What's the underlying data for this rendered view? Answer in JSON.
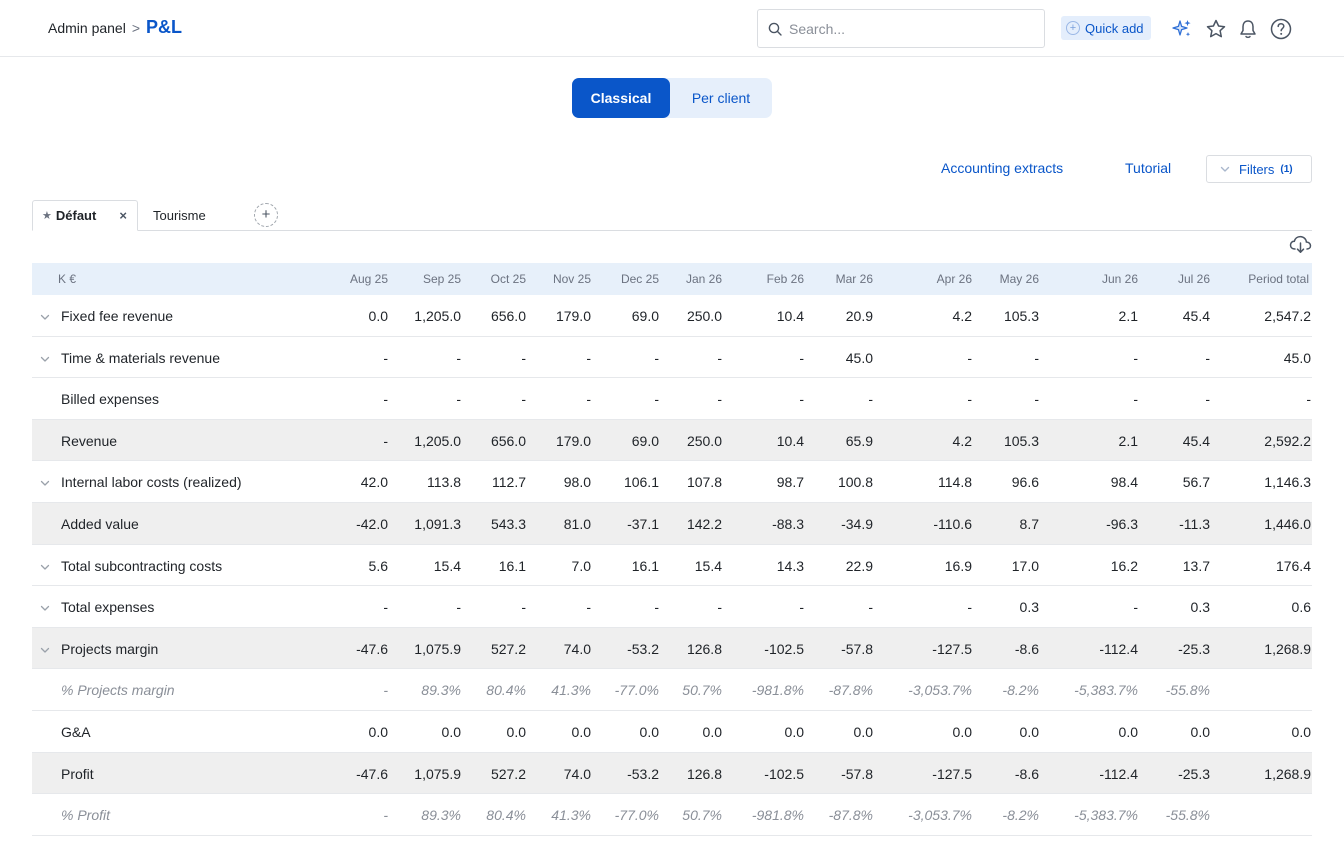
{
  "breadcrumb": {
    "parent": "Admin panel",
    "separator": ">",
    "current": "P&L"
  },
  "search": {
    "placeholder": "Search..."
  },
  "quick_add": {
    "label": "Quick add"
  },
  "header_icons": [
    "sparkle-icon",
    "star-icon",
    "bell-icon",
    "help-icon"
  ],
  "view_mode": {
    "classical": "Classical",
    "per_client": "Per client",
    "selected": "Classical"
  },
  "actions": {
    "accounting_extracts": "Accounting extracts",
    "tutorial": "Tutorial",
    "filters": "Filters",
    "filters_count": "(1)"
  },
  "views": {
    "default_label": "Défaut",
    "other_label": "Tourisme",
    "add": "+",
    "close": "×"
  },
  "colors": {
    "accent": "#0a56c9",
    "header_bg": "#e7f0fa",
    "shaded_row": "#efefef"
  },
  "table": {
    "unit_label": "K €",
    "columns": [
      "Aug 25",
      "Sep 25",
      "Oct 25",
      "Nov 25",
      "Dec 25",
      "Jan 26",
      "Feb 26",
      "Mar 26",
      "Apr 26",
      "May 26",
      "Jun 26",
      "Jul 26",
      "Period total"
    ],
    "rows": [
      {
        "label": "Fixed fee revenue",
        "values": [
          "0.0",
          "1,205.0",
          "656.0",
          "179.0",
          "69.0",
          "250.0",
          "10.4",
          "20.9",
          "4.2",
          "105.3",
          "2.1",
          "45.4",
          "2,547.2"
        ]
      },
      {
        "label": "Time & materials revenue",
        "values": [
          "-",
          "-",
          "-",
          "-",
          "-",
          "-",
          "-",
          "45.0",
          "-",
          "-",
          "-",
          "-",
          "45.0"
        ]
      },
      {
        "label": "Billed expenses",
        "values": [
          "-",
          "-",
          "-",
          "-",
          "-",
          "-",
          "-",
          "-",
          "-",
          "-",
          "-",
          "-",
          "-"
        ]
      },
      {
        "label": "Revenue",
        "values": [
          "-",
          "1,205.0",
          "656.0",
          "179.0",
          "69.0",
          "250.0",
          "10.4",
          "65.9",
          "4.2",
          "105.3",
          "2.1",
          "45.4",
          "2,592.2"
        ]
      },
      {
        "label": "Internal labor costs (realized)",
        "values": [
          "42.0",
          "113.8",
          "112.7",
          "98.0",
          "106.1",
          "107.8",
          "98.7",
          "100.8",
          "114.8",
          "96.6",
          "98.4",
          "56.7",
          "1,146.3"
        ]
      },
      {
        "label": "Added value",
        "values": [
          "-42.0",
          "1,091.3",
          "543.3",
          "81.0",
          "-37.1",
          "142.2",
          "-88.3",
          "-34.9",
          "-110.6",
          "8.7",
          "-96.3",
          "-11.3",
          "1,446.0"
        ]
      },
      {
        "label": "Total subcontracting costs",
        "values": [
          "5.6",
          "15.4",
          "16.1",
          "7.0",
          "16.1",
          "15.4",
          "14.3",
          "22.9",
          "16.9",
          "17.0",
          "16.2",
          "13.7",
          "176.4"
        ]
      },
      {
        "label": "Total expenses",
        "values": [
          "-",
          "-",
          "-",
          "-",
          "-",
          "-",
          "-",
          "-",
          "-",
          "0.3",
          "-",
          "0.3",
          "0.6"
        ]
      },
      {
        "label": "Projects margin",
        "values": [
          "-47.6",
          "1,075.9",
          "527.2",
          "74.0",
          "-53.2",
          "126.8",
          "-102.5",
          "-57.8",
          "-127.5",
          "-8.6",
          "-112.4",
          "-25.3",
          "1,268.9"
        ]
      },
      {
        "label": "% Projects margin",
        "values": [
          "-",
          "89.3%",
          "80.4%",
          "41.3%",
          "-77.0%",
          "50.7%",
          "-981.8%",
          "-87.8%",
          "-3,053.7%",
          "-8.2%",
          "-5,383.7%",
          "-55.8%",
          ""
        ]
      },
      {
        "label": "G&A",
        "values": [
          "0.0",
          "0.0",
          "0.0",
          "0.0",
          "0.0",
          "0.0",
          "0.0",
          "0.0",
          "0.0",
          "0.0",
          "0.0",
          "0.0",
          "0.0"
        ]
      },
      {
        "label": "Profit",
        "values": [
          "-47.6",
          "1,075.9",
          "527.2",
          "74.0",
          "-53.2",
          "126.8",
          "-102.5",
          "-57.8",
          "-127.5",
          "-8.6",
          "-112.4",
          "-25.3",
          "1,268.9"
        ]
      },
      {
        "label": "% Profit",
        "values": [
          "-",
          "89.3%",
          "80.4%",
          "41.3%",
          "-77.0%",
          "50.7%",
          "-981.8%",
          "-87.8%",
          "-3,053.7%",
          "-8.2%",
          "-5,383.7%",
          "-55.8%",
          ""
        ]
      }
    ]
  }
}
